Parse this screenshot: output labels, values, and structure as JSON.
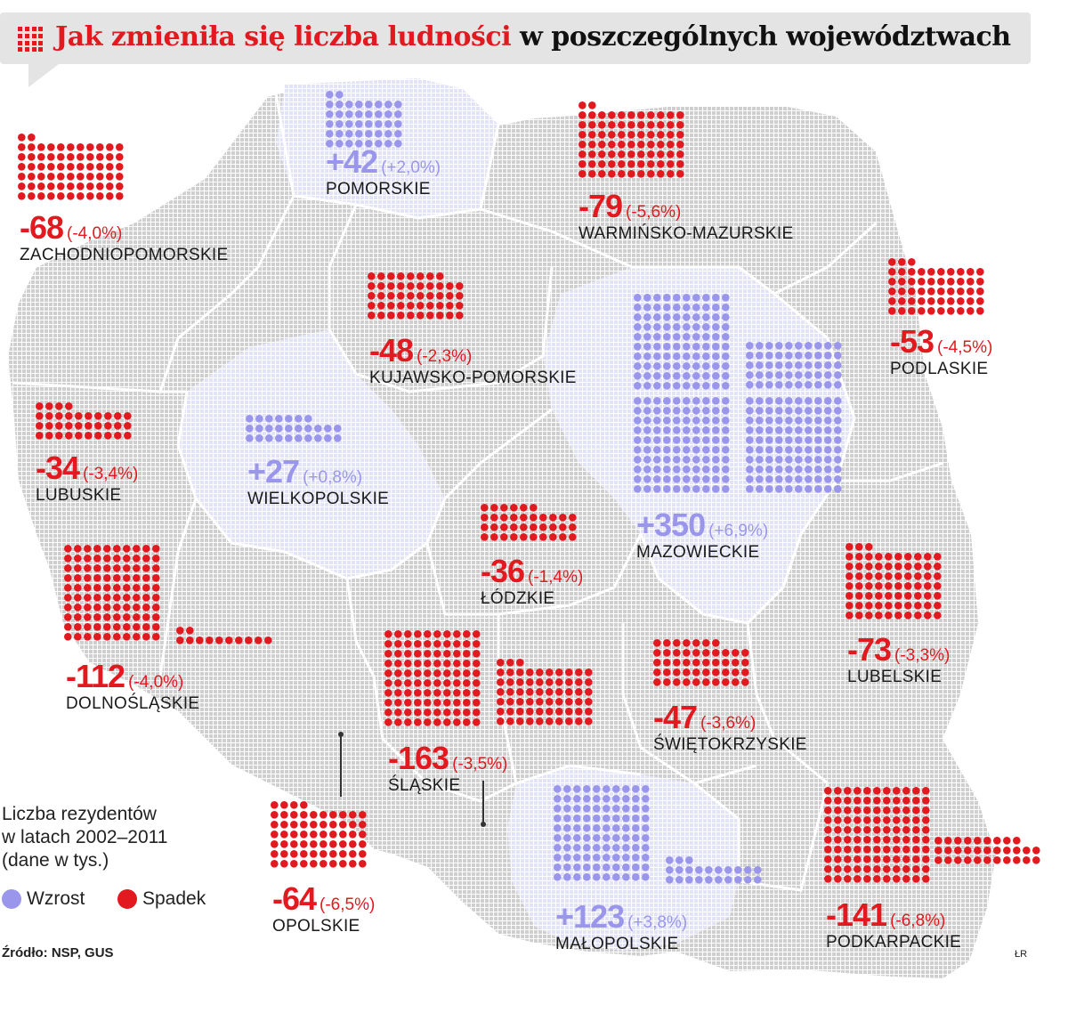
{
  "title": {
    "highlight": "Jak zmieniła się liczba ludności",
    "rest": " w poszczególnych województwach"
  },
  "colors": {
    "increase": "#9a96ec",
    "decrease": "#e2191f",
    "map_fill": "#d9d9d9",
    "region_light": "#ebebfb"
  },
  "regions": [
    {
      "id": "pomorskie",
      "value": "+42",
      "percent": "(+2,0%)",
      "name": "POMORSKIE",
      "trend": "up"
    },
    {
      "id": "zachodniopomorskie",
      "value": "-68",
      "percent": "(-4,0%)",
      "name": "ZACHODNIOPOMORSKIE",
      "trend": "down"
    },
    {
      "id": "warminsko-mazurskie",
      "value": "-79",
      "percent": "(-5,6%)",
      "name": "WARMIŃSKO-MAZURSKIE",
      "trend": "down"
    },
    {
      "id": "kujawsko-pomorskie",
      "value": "-48",
      "percent": "(-2,3%)",
      "name": "KUJAWSKO-POMORSKIE",
      "trend": "down"
    },
    {
      "id": "podlaskie",
      "value": "-53",
      "percent": "(-4,5%)",
      "name": "PODLASKIE",
      "trend": "down"
    },
    {
      "id": "lubuskie",
      "value": "-34",
      "percent": "(-3,4%)",
      "name": "LUBUSKIE",
      "trend": "down"
    },
    {
      "id": "wielkopolskie",
      "value": "+27",
      "percent": "(+0,8%)",
      "name": "WIELKOPOLSKIE",
      "trend": "up"
    },
    {
      "id": "mazowieckie",
      "value": "+350",
      "percent": "(+6,9%)",
      "name": "MAZOWIECKIE",
      "trend": "up"
    },
    {
      "id": "lodzkie",
      "value": "-36",
      "percent": "(-1,4%)",
      "name": "ŁÓDZKIE",
      "trend": "down"
    },
    {
      "id": "dolnoslaskie",
      "value": "-112",
      "percent": "(-4,0%)",
      "name": "DOLNOŚLĄSKIE",
      "trend": "down"
    },
    {
      "id": "lubelskie",
      "value": "-73",
      "percent": "(-3,3%)",
      "name": "LUBELSKIE",
      "trend": "down"
    },
    {
      "id": "swietokrzyskie",
      "value": "-47",
      "percent": "(-3,6%)",
      "name": "ŚWIĘTOKRZYSKIE",
      "trend": "down"
    },
    {
      "id": "slaskie",
      "value": "-163",
      "percent": "(-3,5%)",
      "name": "ŚLĄSKIE",
      "trend": "down"
    },
    {
      "id": "opolskie",
      "value": "-64",
      "percent": "(-6,5%)",
      "name": "OPOLSKIE",
      "trend": "down"
    },
    {
      "id": "malopolskie",
      "value": "+123",
      "percent": "(+3,8%)",
      "name": "MAŁOPOLSKIE",
      "trend": "up"
    },
    {
      "id": "podkarpackie",
      "value": "-141",
      "percent": "(-6,8%)",
      "name": "PODKARPACKIE",
      "trend": "down"
    }
  ],
  "legend": {
    "title_lines": [
      "Liczba rezydentów",
      "w latach 2002–2011",
      "(dane w tys.)"
    ],
    "increase_label": "Wzrost",
    "decrease_label": "Spadek"
  },
  "source": "Źródło: NSP, GUS",
  "author": "ŁR"
}
